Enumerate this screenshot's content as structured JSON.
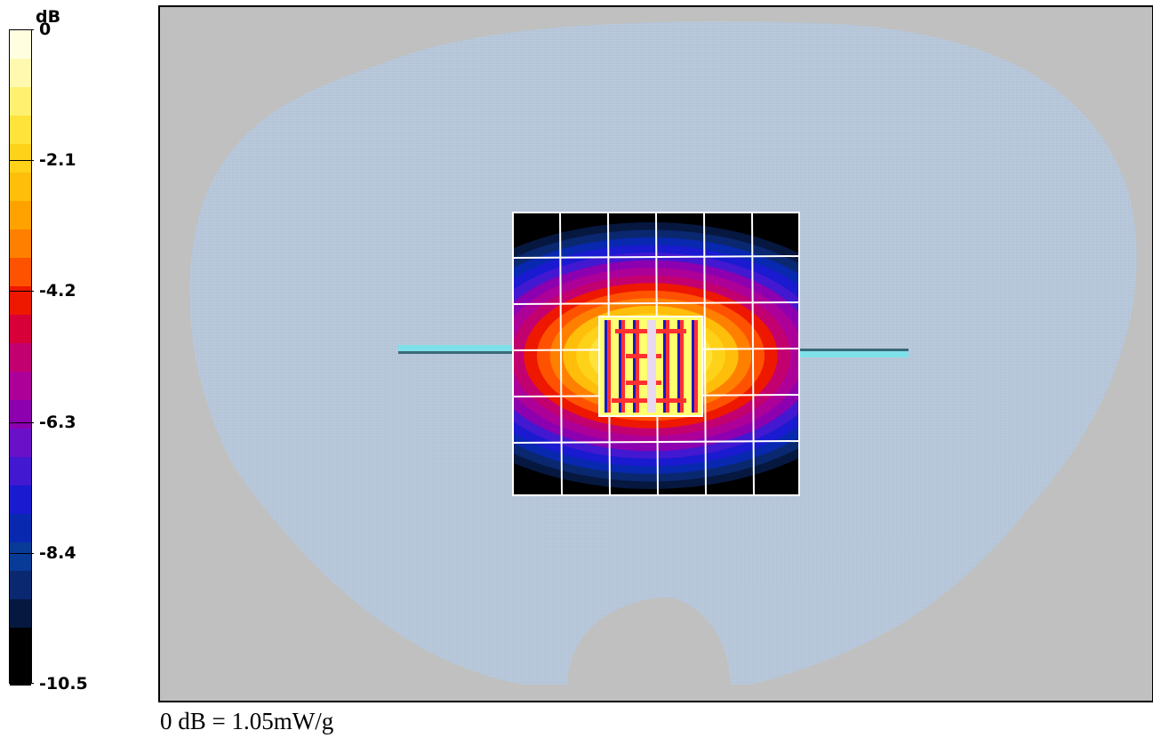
{
  "legend": {
    "unit": "dB",
    "colorbar_stops_top_to_bottom": [
      "#ffffe0",
      "#fff9b0",
      "#fff070",
      "#ffe23a",
      "#ffd21a",
      "#ffbe0a",
      "#ffa200",
      "#ff8000",
      "#ff5200",
      "#ee1800",
      "#d80038",
      "#c30070",
      "#ac0098",
      "#8c00b0",
      "#6a10c8",
      "#4218d0",
      "#1a1ad0",
      "#0828b0",
      "#083a98",
      "#0a2870",
      "#061840",
      "#000000",
      "#000000"
    ],
    "ticks": [
      {
        "label": "0",
        "value": 0
      },
      {
        "label": "-2.1",
        "value": -2.1
      },
      {
        "label": "-4.2",
        "value": -4.2
      },
      {
        "label": "-6.3",
        "value": -6.3
      },
      {
        "label": "-8.4",
        "value": -8.4
      },
      {
        "label": "-10.5",
        "value": -10.5
      }
    ]
  },
  "chart_data": {
    "type": "heatmap",
    "title": "",
    "colorbar_unit": "dB",
    "range": [
      -10.5,
      0
    ],
    "ticks": [
      0,
      -2.1,
      -4.2,
      -6.3,
      -8.4,
      -10.5
    ],
    "contour_levels_db": [
      0,
      -0.7,
      -1.4,
      -2.1,
      -2.8,
      -3.5,
      -4.2,
      -4.9,
      -5.6,
      -6.3,
      -7.0,
      -7.7,
      -8.4,
      -9.1,
      -9.8,
      -10.5
    ],
    "colors": {
      "background": "#c0c0c0",
      "phantom": "#b8c8da",
      "antenna": "#7ee0e8",
      "grid": "#ffffff",
      "dipole_red": "#ff3030",
      "dipole_blue": "#1818c8"
    },
    "caption": "0 dB = 1.05mW/g"
  }
}
